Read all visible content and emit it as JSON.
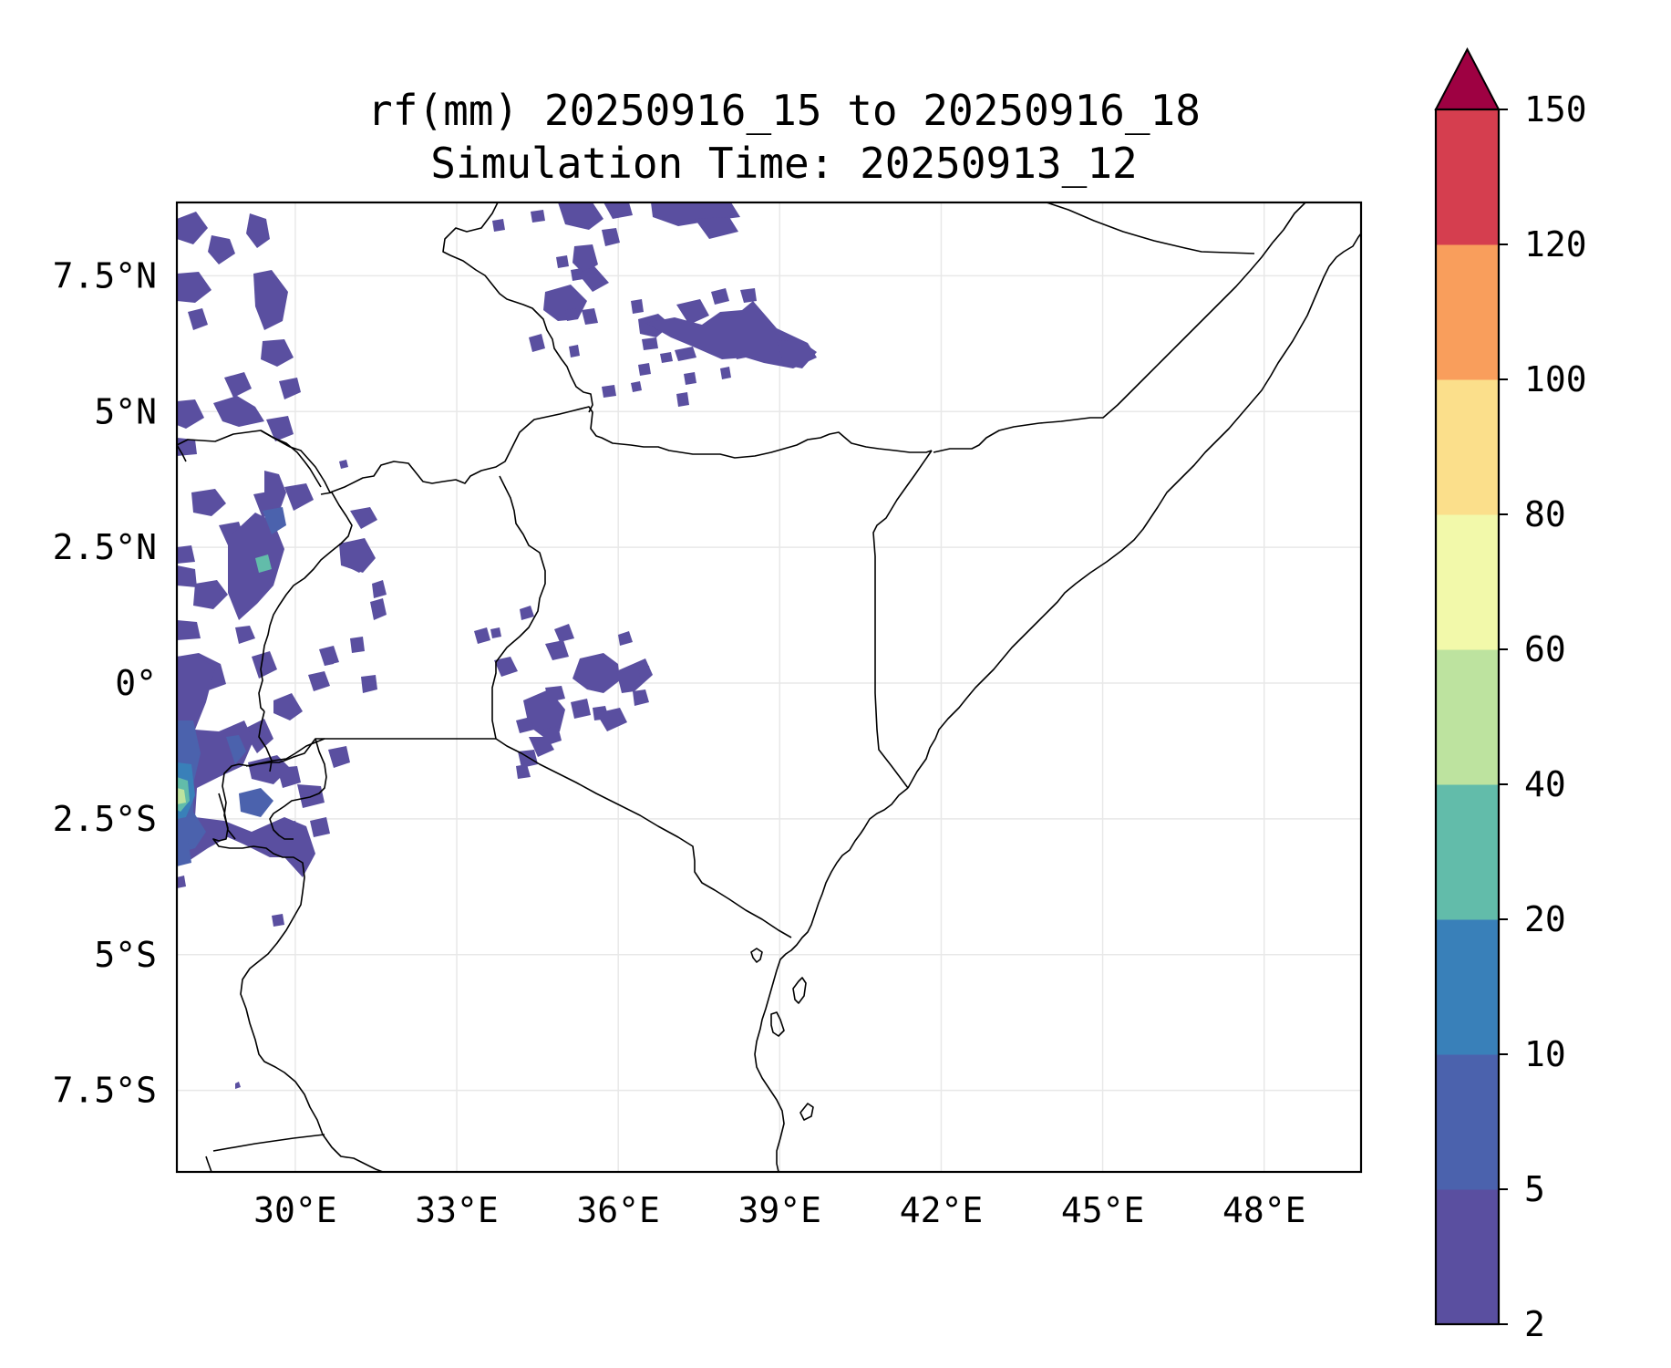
{
  "title": {
    "line1": "rf(mm) 20250916_15 to 20250916_18",
    "line2": "Simulation Time: 20250913_12"
  },
  "map": {
    "lon_range": [
      27.8,
      49.8
    ],
    "lat_range": [
      -9.0,
      8.85
    ],
    "xticks": [
      {
        "value": 30,
        "label": "30°E"
      },
      {
        "value": 33,
        "label": "33°E"
      },
      {
        "value": 36,
        "label": "36°E"
      },
      {
        "value": 39,
        "label": "39°E"
      },
      {
        "value": 42,
        "label": "42°E"
      },
      {
        "value": 45,
        "label": "45°E"
      },
      {
        "value": 48,
        "label": "48°E"
      }
    ],
    "yticks": [
      {
        "value": 7.5,
        "label": "7.5°N"
      },
      {
        "value": 5,
        "label": "5°N"
      },
      {
        "value": 2.5,
        "label": "2.5°N"
      },
      {
        "value": 0,
        "label": "0°"
      },
      {
        "value": -2.5,
        "label": "2.5°S"
      },
      {
        "value": -5,
        "label": "5°S"
      },
      {
        "value": -7.5,
        "label": "7.5°S"
      }
    ],
    "gridlines": true
  },
  "colorbar": {
    "levels": [
      "2",
      "5",
      "10",
      "20",
      "40",
      "60",
      "80",
      "100",
      "120",
      "150"
    ],
    "colors": [
      "#5a4fa0",
      "#4b62ad",
      "#3980b9",
      "#62bcaa",
      "#bde39f",
      "#f2f9aa",
      "#fbdf8b",
      "#f99e5c",
      "#d53e4f"
    ],
    "extend_color": "#9e0142",
    "extend": "max"
  }
}
